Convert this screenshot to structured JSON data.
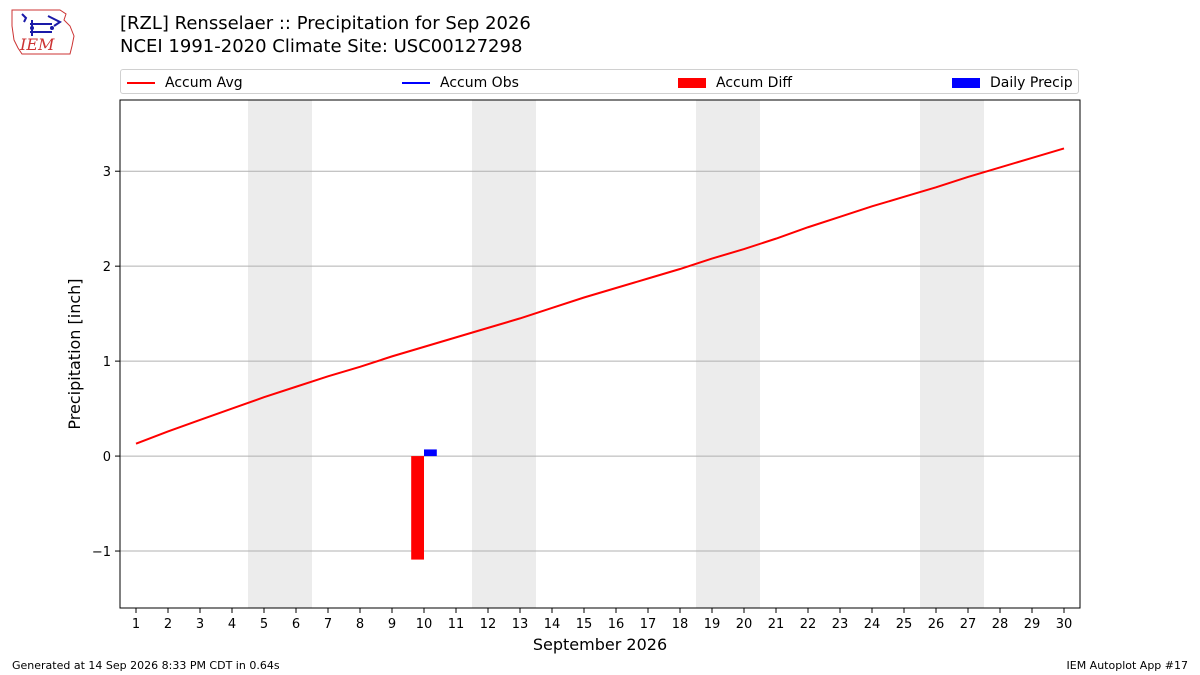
{
  "header": {
    "title_line1": "[RZL] Rensselaer :: Precipitation for Sep 2026",
    "title_line2": "NCEI 1991-2020 Climate Site: USC00127298",
    "logo_text": "IEM"
  },
  "legend": [
    {
      "label": "Accum Avg",
      "kind": "line",
      "color": "#ff0000"
    },
    {
      "label": "Accum Obs",
      "kind": "line",
      "color": "#0000ff"
    },
    {
      "label": "Accum Diff",
      "kind": "patch",
      "color": "#ff0000"
    },
    {
      "label": "Daily Precip",
      "kind": "patch",
      "color": "#0000ff"
    }
  ],
  "footer": {
    "left": "Generated at 14 Sep 2026 8:33 PM CDT in 0.64s",
    "right": "IEM Autoplot App #17"
  },
  "chart_data": {
    "type": "line",
    "xlabel": "September 2026",
    "ylabel": "Precipitation [inch]",
    "xlim": [
      0.5,
      30.5
    ],
    "ylim": [
      -1.6,
      3.75
    ],
    "x": [
      1,
      2,
      3,
      4,
      5,
      6,
      7,
      8,
      9,
      10,
      11,
      12,
      13,
      14,
      15,
      16,
      17,
      18,
      19,
      20,
      21,
      22,
      23,
      24,
      25,
      26,
      27,
      28,
      29,
      30
    ],
    "x_tick_labels": [
      "1",
      "2",
      "3",
      "4",
      "5",
      "6",
      "7",
      "8",
      "9",
      "10",
      "11",
      "12",
      "13",
      "14",
      "15",
      "16",
      "17",
      "18",
      "19",
      "20",
      "21",
      "22",
      "23",
      "24",
      "25",
      "26",
      "27",
      "28",
      "29",
      "30"
    ],
    "y_ticks": [
      -1,
      0,
      1,
      2,
      3
    ],
    "y_tick_labels": [
      "−1",
      "0",
      "1",
      "2",
      "3"
    ],
    "grid": "horizontal",
    "weekend_shading": [
      [
        4.5,
        6.5
      ],
      [
        11.5,
        13.5
      ],
      [
        18.5,
        20.5
      ],
      [
        25.5,
        27.5
      ]
    ],
    "series": [
      {
        "name": "Accum Avg",
        "type": "line",
        "color": "#ff0000",
        "values": [
          0.13,
          0.26,
          0.38,
          0.5,
          0.62,
          0.73,
          0.84,
          0.94,
          1.05,
          1.15,
          1.25,
          1.35,
          1.45,
          1.56,
          1.67,
          1.77,
          1.87,
          1.97,
          2.08,
          2.18,
          2.29,
          2.41,
          2.52,
          2.63,
          2.73,
          2.83,
          2.94,
          3.04,
          3.14,
          3.24
        ]
      },
      {
        "name": "Accum Diff",
        "type": "bar",
        "color": "#ff0000",
        "points": [
          {
            "x": 10,
            "value": -1.09
          }
        ]
      },
      {
        "name": "Daily Precip",
        "type": "bar",
        "color": "#0000ff",
        "points": [
          {
            "x": 10,
            "value": 0.07
          }
        ]
      }
    ]
  }
}
